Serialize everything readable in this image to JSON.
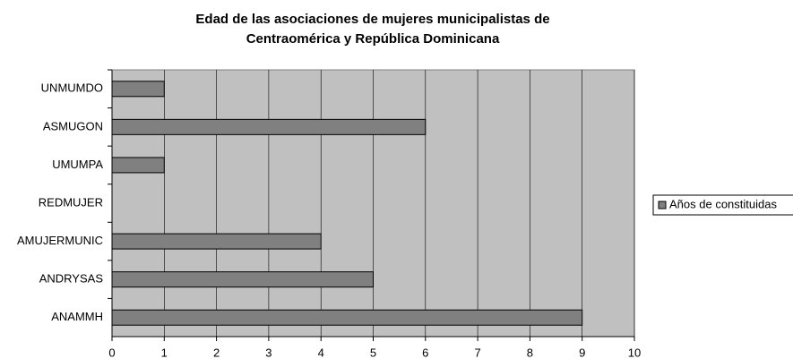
{
  "chart_data": {
    "type": "bar",
    "orientation": "horizontal",
    "title": [
      "Edad de las asociaciones de mujeres municipalistas de",
      "Centraomérica y República  Dominicana"
    ],
    "categories": [
      "UNMUMDO",
      "ASMUGON",
      "UMUMPA",
      "REDMUJER",
      "AMUJERMUNIC",
      "ANDRYSAS",
      "ANAMMH"
    ],
    "series": [
      {
        "name": "Años de constituidas",
        "color": "#808080",
        "values": [
          1,
          6,
          1,
          0,
          4,
          5,
          9
        ]
      }
    ],
    "xlim": [
      0,
      10
    ],
    "xticks": [
      0,
      1,
      2,
      3,
      4,
      5,
      6,
      7,
      8,
      9,
      10
    ],
    "grid": true,
    "legend": "right",
    "plot_background": "#c0c0c0"
  }
}
